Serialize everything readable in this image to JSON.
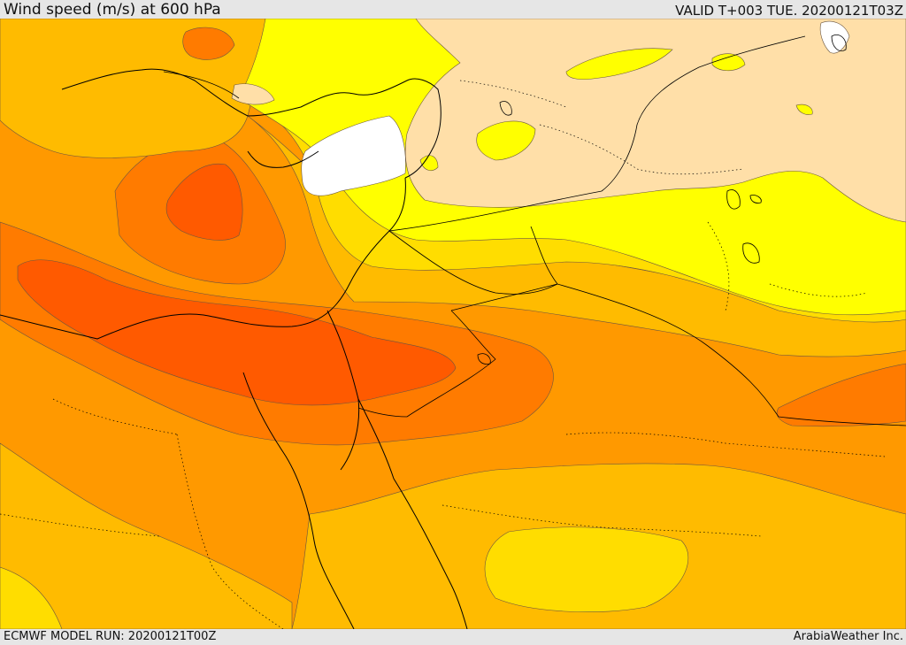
{
  "header": {
    "title": "Wind speed (m/s) at 600 hPa",
    "valid": "VALID T+003 TUE. 20200121T03Z"
  },
  "footer": {
    "model_run": "ECMWF MODEL RUN: 20200121T00Z",
    "credit": "ArabiaWeather Inc."
  },
  "colors": {
    "white": "#ffffff",
    "tan": "#ffdfa8",
    "yellow": "#ffff00",
    "gold": "#ffdd00",
    "amber": "#ffbb00",
    "orange": "#ff9900",
    "dark_orange": "#ff7b00",
    "red_orange": "#ff5a00",
    "coast": "#000000",
    "contour": "#5a4a3a"
  }
}
